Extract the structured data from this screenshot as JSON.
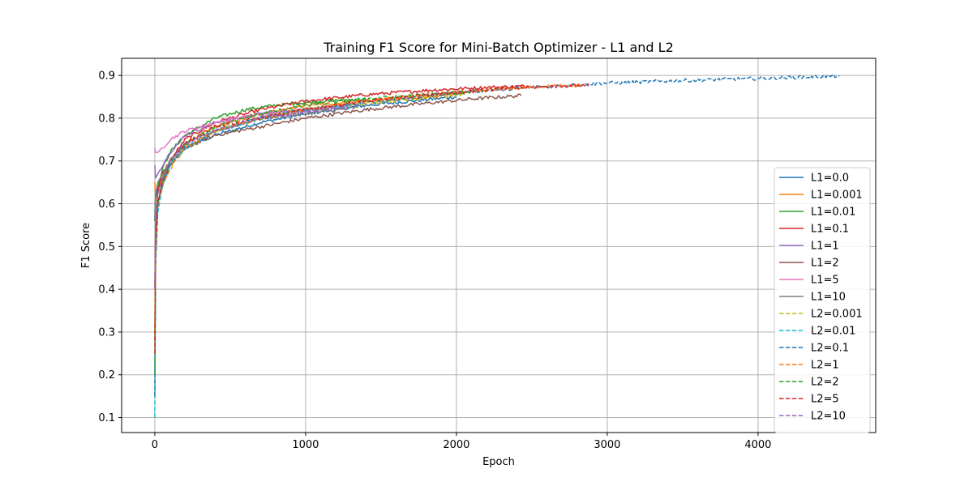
{
  "chart_data": {
    "type": "line",
    "title": "Training F1 Score for Mini-Batch Optimizer - L1 and L2",
    "xlabel": "Epoch",
    "ylabel": "F1 Score",
    "xlim": [
      -220,
      4780
    ],
    "ylim": [
      0.065,
      0.94
    ],
    "xticks": [
      0,
      1000,
      2000,
      3000,
      4000
    ],
    "xtick_labels": [
      "0",
      "1000",
      "2000",
      "3000",
      "4000"
    ],
    "yticks": [
      0.1,
      0.2,
      0.3,
      0.4,
      0.5,
      0.6,
      0.7,
      0.8,
      0.9
    ],
    "ytick_labels": [
      "0.1",
      "0.2",
      "0.3",
      "0.4",
      "0.5",
      "0.6",
      "0.7",
      "0.8",
      "0.9"
    ],
    "grid": true,
    "legend_position": "lower-right",
    "series": [
      {
        "name": "L1=0.0",
        "color": "#1f77b4",
        "dash": "solid",
        "x": [
          0,
          5,
          20,
          50,
          100,
          200,
          400,
          700,
          1000,
          1400,
          1700,
          2000
        ],
        "y": [
          0.56,
          0.62,
          0.64,
          0.66,
          0.69,
          0.73,
          0.76,
          0.79,
          0.81,
          0.83,
          0.84,
          0.85
        ]
      },
      {
        "name": "L1=0.001",
        "color": "#ff7f0e",
        "dash": "solid",
        "x": [
          0,
          5,
          20,
          50,
          100,
          200,
          400,
          700,
          1000,
          1400,
          1800,
          2050
        ],
        "y": [
          0.65,
          0.62,
          0.63,
          0.66,
          0.7,
          0.74,
          0.78,
          0.81,
          0.83,
          0.84,
          0.85,
          0.86
        ]
      },
      {
        "name": "L1=0.01",
        "color": "#2ca02c",
        "dash": "solid",
        "x": [
          0,
          5,
          20,
          50,
          100,
          200,
          400,
          600,
          800,
          1100,
          1400
        ],
        "y": [
          0.58,
          0.61,
          0.64,
          0.68,
          0.72,
          0.76,
          0.8,
          0.82,
          0.83,
          0.84,
          0.845
        ]
      },
      {
        "name": "L1=0.1",
        "color": "#d62728",
        "dash": "solid",
        "x": [
          0,
          5,
          20,
          50,
          100,
          200,
          400,
          700,
          1000,
          1400,
          1800,
          2200,
          2480
        ],
        "y": [
          0.4,
          0.55,
          0.63,
          0.67,
          0.7,
          0.75,
          0.79,
          0.82,
          0.84,
          0.855,
          0.865,
          0.872,
          0.875
        ]
      },
      {
        "name": "L1=1",
        "color": "#9467bd",
        "dash": "solid",
        "x": [
          0,
          5,
          20,
          50,
          100,
          200,
          400,
          700,
          1000,
          1350
        ],
        "y": [
          0.69,
          0.66,
          0.67,
          0.69,
          0.72,
          0.76,
          0.79,
          0.81,
          0.82,
          0.83
        ]
      },
      {
        "name": "L1=2",
        "color": "#8c564b",
        "dash": "solid",
        "x": [
          0,
          5,
          20,
          50,
          100,
          200,
          400,
          700,
          1000,
          1400,
          1800,
          2100,
          2430
        ],
        "y": [
          0.28,
          0.5,
          0.6,
          0.64,
          0.69,
          0.73,
          0.76,
          0.78,
          0.8,
          0.82,
          0.835,
          0.845,
          0.853
        ]
      },
      {
        "name": "L1=5",
        "color": "#e377c2",
        "dash": "solid",
        "x": [
          0,
          5,
          20,
          50,
          100,
          200,
          400,
          700,
          1000,
          1300
        ],
        "y": [
          0.73,
          0.72,
          0.72,
          0.73,
          0.75,
          0.77,
          0.79,
          0.81,
          0.82,
          0.83
        ]
      },
      {
        "name": "L1=10",
        "color": "#7f7f7f",
        "dash": "solid",
        "x": [
          0,
          5,
          20,
          50,
          100,
          200,
          400,
          700,
          1000,
          1350
        ],
        "y": [
          0.56,
          0.62,
          0.65,
          0.67,
          0.7,
          0.74,
          0.77,
          0.8,
          0.81,
          0.825
        ]
      },
      {
        "name": "L2=0.001",
        "color": "#bcbd22",
        "dash": "dashed",
        "x": [
          0,
          5,
          20,
          50,
          100,
          200,
          400,
          700,
          1000,
          1400,
          1700,
          2050
        ],
        "y": [
          0.3,
          0.5,
          0.6,
          0.65,
          0.69,
          0.73,
          0.77,
          0.8,
          0.82,
          0.835,
          0.845,
          0.855
        ]
      },
      {
        "name": "L2=0.01",
        "color": "#17becf",
        "dash": "dashed",
        "x": [
          0,
          5,
          20,
          50,
          100,
          200,
          400,
          700,
          1000,
          1300
        ],
        "y": [
          0.1,
          0.45,
          0.58,
          0.64,
          0.69,
          0.73,
          0.77,
          0.8,
          0.82,
          0.83
        ]
      },
      {
        "name": "L2=0.1",
        "color": "#1f77b4",
        "dash": "dashed",
        "x": [
          0,
          5,
          20,
          50,
          100,
          200,
          400,
          700,
          1000,
          1500,
          2000,
          2500,
          3000,
          3400,
          3800,
          4200,
          4540
        ],
        "y": [
          0.15,
          0.5,
          0.6,
          0.65,
          0.69,
          0.73,
          0.77,
          0.8,
          0.82,
          0.84,
          0.86,
          0.872,
          0.882,
          0.887,
          0.891,
          0.895,
          0.899
        ]
      },
      {
        "name": "L2=1",
        "color": "#ff7f0e",
        "dash": "dashed",
        "x": [
          0,
          5,
          20,
          50,
          100,
          200,
          400,
          700,
          1000,
          1400,
          1800,
          2200,
          2500,
          2830
        ],
        "y": [
          0.3,
          0.52,
          0.6,
          0.64,
          0.68,
          0.73,
          0.77,
          0.8,
          0.82,
          0.84,
          0.855,
          0.866,
          0.872,
          0.877
        ]
      },
      {
        "name": "L2=2",
        "color": "#2ca02c",
        "dash": "dashed",
        "x": [
          0,
          5,
          20,
          50,
          100,
          200,
          400,
          700,
          1000,
          1400,
          1800,
          2100
        ],
        "y": [
          0.2,
          0.48,
          0.6,
          0.65,
          0.7,
          0.74,
          0.78,
          0.81,
          0.83,
          0.845,
          0.855,
          0.86
        ]
      },
      {
        "name": "L2=5",
        "color": "#d62728",
        "dash": "dashed",
        "x": [
          0,
          5,
          20,
          50,
          100,
          200,
          400,
          700,
          1000,
          1400,
          1800,
          2200,
          2500,
          2880
        ],
        "y": [
          0.25,
          0.48,
          0.6,
          0.65,
          0.7,
          0.74,
          0.78,
          0.8,
          0.82,
          0.84,
          0.855,
          0.866,
          0.872,
          0.878
        ]
      },
      {
        "name": "L2=10",
        "color": "#9467bd",
        "dash": "dashed",
        "x": [
          0,
          5,
          20,
          50,
          100,
          200,
          400,
          700,
          1000,
          1300
        ],
        "y": [
          0.4,
          0.55,
          0.62,
          0.66,
          0.7,
          0.74,
          0.77,
          0.8,
          0.815,
          0.83
        ]
      }
    ]
  }
}
